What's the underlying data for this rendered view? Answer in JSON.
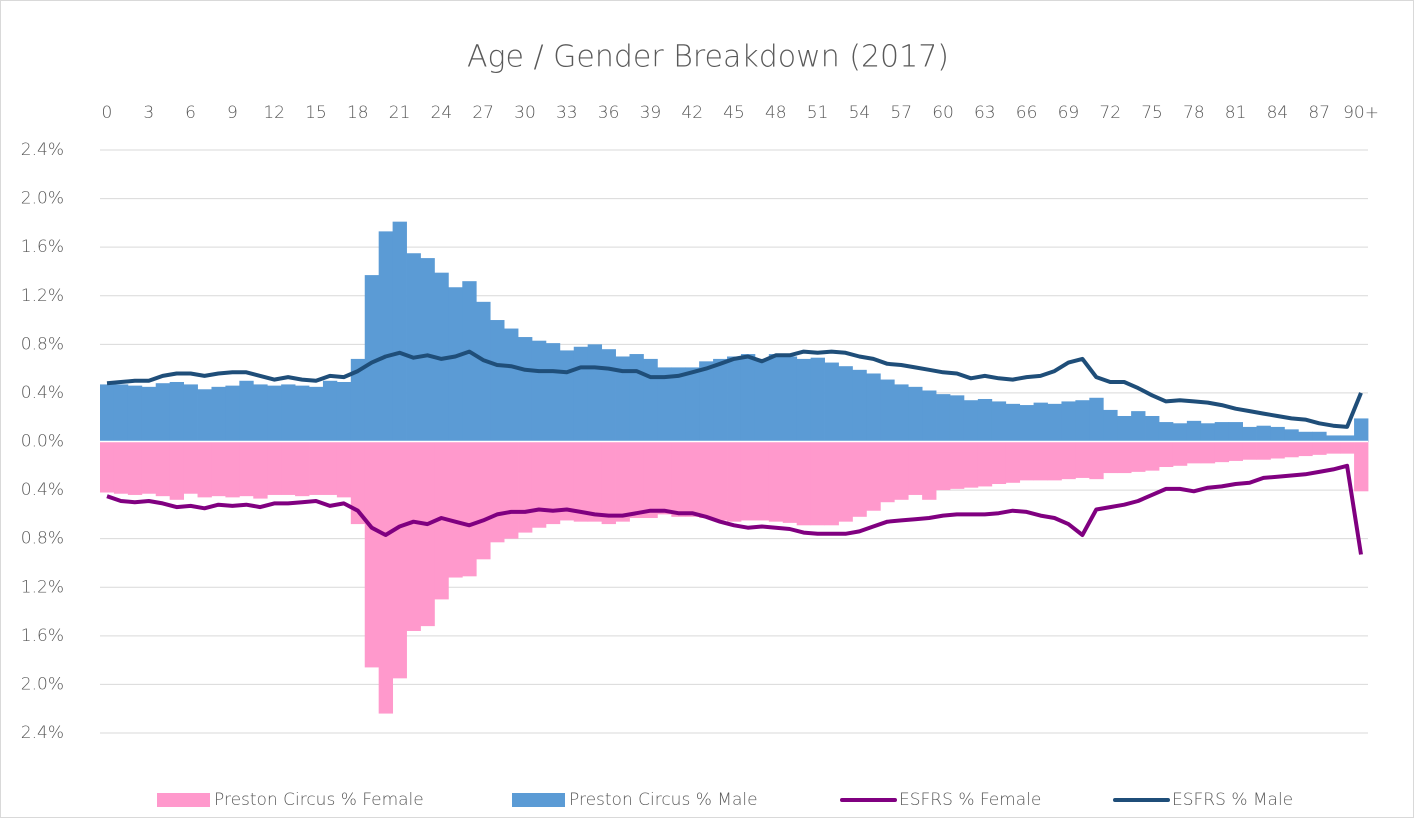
{
  "chart_data": {
    "type": "bar",
    "title": "Age / Gender Breakdown (2017)",
    "categories": [
      "0",
      null,
      null,
      "3",
      null,
      null,
      "6",
      null,
      null,
      "9",
      null,
      null,
      "12",
      null,
      null,
      "15",
      null,
      null,
      "18",
      null,
      null,
      "21",
      null,
      null,
      "24",
      null,
      null,
      "27",
      null,
      null,
      "30",
      null,
      null,
      "33",
      null,
      null,
      "36",
      null,
      null,
      "39",
      null,
      null,
      "42",
      null,
      null,
      "45",
      null,
      null,
      "48",
      null,
      null,
      "51",
      null,
      null,
      "54",
      null,
      null,
      "57",
      null,
      null,
      "60",
      null,
      null,
      "63",
      null,
      null,
      "66",
      null,
      null,
      "69",
      null,
      null,
      "72",
      null,
      null,
      "75",
      null,
      null,
      "78",
      null,
      null,
      "81",
      null,
      null,
      "84",
      null,
      null,
      "87",
      null,
      null,
      "90+"
    ],
    "ylim": [
      -2.4,
      2.4
    ],
    "yticks": [
      {
        "value": 2.4,
        "label": "2.4%"
      },
      {
        "value": 2.0,
        "label": "2.0%"
      },
      {
        "value": 1.6,
        "label": "1.6%"
      },
      {
        "value": 1.2,
        "label": "1.2%"
      },
      {
        "value": 0.8,
        "label": "0.8%"
      },
      {
        "value": 0.4,
        "label": "0.4%"
      },
      {
        "value": 0,
        "label": "0.0%"
      },
      {
        "value": -0.4,
        "label": "0.4%"
      },
      {
        "value": -0.8,
        "label": "0.8%"
      },
      {
        "value": -1.2,
        "label": "1.2%"
      },
      {
        "value": -1.6,
        "label": "1.6%"
      },
      {
        "value": -2.0,
        "label": "2.0%"
      },
      {
        "value": -2.4,
        "label": "2.4%"
      }
    ],
    "grid": true,
    "legend": "bottom",
    "series": [
      {
        "name": "Preston Circus % Female",
        "type": "bar",
        "color": "#ff99cc",
        "values": [
          -0.42,
          -0.43,
          -0.44,
          -0.43,
          -0.45,
          -0.48,
          -0.43,
          -0.46,
          -0.45,
          -0.46,
          -0.45,
          -0.47,
          -0.44,
          -0.44,
          -0.45,
          -0.44,
          -0.44,
          -0.46,
          -0.68,
          -1.86,
          -2.24,
          -1.95,
          -1.56,
          -1.52,
          -1.3,
          -1.12,
          -1.11,
          -0.97,
          -0.83,
          -0.8,
          -0.75,
          -0.71,
          -0.68,
          -0.65,
          -0.66,
          -0.66,
          -0.68,
          -0.66,
          -0.63,
          -0.63,
          -0.6,
          -0.62,
          -0.62,
          -0.63,
          -0.65,
          -0.66,
          -0.65,
          -0.65,
          -0.66,
          -0.67,
          -0.69,
          -0.69,
          -0.69,
          -0.66,
          -0.62,
          -0.57,
          -0.5,
          -0.48,
          -0.44,
          -0.48,
          -0.4,
          -0.39,
          -0.38,
          -0.37,
          -0.35,
          -0.34,
          -0.32,
          -0.32,
          -0.32,
          -0.31,
          -0.3,
          -0.31,
          -0.26,
          -0.26,
          -0.25,
          -0.24,
          -0.21,
          -0.2,
          -0.18,
          -0.18,
          -0.17,
          -0.16,
          -0.15,
          -0.15,
          -0.14,
          -0.13,
          -0.12,
          -0.11,
          -0.1,
          -0.1,
          -0.41
        ]
      },
      {
        "name": "Preston Circus % Male",
        "type": "bar",
        "color": "#5b9bd5",
        "values": [
          0.47,
          0.47,
          0.46,
          0.45,
          0.48,
          0.49,
          0.47,
          0.43,
          0.45,
          0.46,
          0.5,
          0.47,
          0.46,
          0.47,
          0.46,
          0.45,
          0.5,
          0.49,
          0.68,
          1.37,
          1.73,
          1.81,
          1.55,
          1.51,
          1.39,
          1.27,
          1.32,
          1.15,
          1.0,
          0.93,
          0.86,
          0.83,
          0.81,
          0.75,
          0.78,
          0.8,
          0.76,
          0.7,
          0.72,
          0.68,
          0.61,
          0.61,
          0.61,
          0.66,
          0.68,
          0.7,
          0.72,
          0.68,
          0.72,
          0.7,
          0.68,
          0.69,
          0.65,
          0.62,
          0.59,
          0.56,
          0.51,
          0.47,
          0.45,
          0.42,
          0.39,
          0.38,
          0.34,
          0.35,
          0.33,
          0.31,
          0.3,
          0.32,
          0.31,
          0.33,
          0.34,
          0.36,
          0.26,
          0.21,
          0.25,
          0.21,
          0.16,
          0.15,
          0.17,
          0.15,
          0.16,
          0.16,
          0.12,
          0.13,
          0.12,
          0.1,
          0.08,
          0.08,
          0.05,
          0.05,
          0.19
        ]
      },
      {
        "name": "ESFRS % Female",
        "type": "line",
        "color": "#800080",
        "values": [
          -0.45,
          -0.49,
          -0.5,
          -0.49,
          -0.51,
          -0.54,
          -0.53,
          -0.55,
          -0.52,
          -0.53,
          -0.52,
          -0.54,
          -0.51,
          -0.51,
          -0.5,
          -0.49,
          -0.53,
          -0.51,
          -0.57,
          -0.71,
          -0.77,
          -0.7,
          -0.66,
          -0.68,
          -0.63,
          -0.66,
          -0.69,
          -0.65,
          -0.6,
          -0.58,
          -0.58,
          -0.56,
          -0.57,
          -0.56,
          -0.58,
          -0.6,
          -0.61,
          -0.61,
          -0.59,
          -0.57,
          -0.57,
          -0.59,
          -0.59,
          -0.62,
          -0.66,
          -0.69,
          -0.71,
          -0.7,
          -0.71,
          -0.72,
          -0.75,
          -0.76,
          -0.76,
          -0.76,
          -0.74,
          -0.7,
          -0.66,
          -0.65,
          -0.64,
          -0.63,
          -0.61,
          -0.6,
          -0.6,
          -0.6,
          -0.59,
          -0.57,
          -0.58,
          -0.61,
          -0.63,
          -0.68,
          -0.77,
          -0.56,
          -0.54,
          -0.52,
          -0.49,
          -0.44,
          -0.39,
          -0.39,
          -0.41,
          -0.38,
          -0.37,
          -0.35,
          -0.34,
          -0.3,
          -0.29,
          -0.28,
          -0.27,
          -0.25,
          -0.23,
          -0.2,
          -0.93
        ]
      },
      {
        "name": "ESFRS % Male",
        "type": "line",
        "color": "#1f4e79",
        "values": [
          0.48,
          0.49,
          0.5,
          0.5,
          0.54,
          0.56,
          0.56,
          0.54,
          0.56,
          0.57,
          0.57,
          0.54,
          0.51,
          0.53,
          0.51,
          0.5,
          0.54,
          0.53,
          0.58,
          0.65,
          0.7,
          0.73,
          0.69,
          0.71,
          0.68,
          0.7,
          0.74,
          0.67,
          0.63,
          0.62,
          0.59,
          0.58,
          0.58,
          0.57,
          0.61,
          0.61,
          0.6,
          0.58,
          0.58,
          0.53,
          0.53,
          0.54,
          0.57,
          0.6,
          0.64,
          0.68,
          0.7,
          0.66,
          0.71,
          0.71,
          0.74,
          0.73,
          0.74,
          0.73,
          0.7,
          0.68,
          0.64,
          0.63,
          0.61,
          0.59,
          0.57,
          0.56,
          0.52,
          0.54,
          0.52,
          0.51,
          0.53,
          0.54,
          0.58,
          0.65,
          0.68,
          0.53,
          0.49,
          0.49,
          0.44,
          0.38,
          0.33,
          0.34,
          0.33,
          0.32,
          0.3,
          0.27,
          0.25,
          0.23,
          0.21,
          0.19,
          0.18,
          0.15,
          0.13,
          0.12,
          0.4
        ]
      }
    ]
  }
}
